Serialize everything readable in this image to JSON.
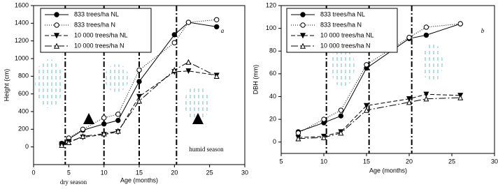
{
  "chart_data": [
    {
      "type": "line",
      "ylabel": "Height (cm)",
      "xlabel": "Age (months)",
      "annotation": "a",
      "xlim": [
        0,
        30
      ],
      "xticks": [
        0,
        5,
        10,
        15,
        20,
        25,
        30
      ],
      "ylim": [
        -200,
        1600
      ],
      "yticks": [
        0,
        200,
        400,
        600,
        800,
        1000,
        1200,
        1400,
        1600
      ],
      "season_lines": [
        4.5,
        10,
        15,
        20.3
      ],
      "season_labels": [
        "dry season",
        "humid season"
      ],
      "series": [
        {
          "name": "833 trees/ha NL",
          "color": "#000000",
          "marker": "circle-filled",
          "dash": "solid",
          "x": [
            4,
            5,
            7,
            10,
            12,
            15,
            20,
            22,
            26
          ],
          "values": [
            30,
            90,
            190,
            260,
            300,
            740,
            1270,
            1410,
            1360
          ]
        },
        {
          "name": "833 trees/ha N",
          "color": "#000000",
          "marker": "circle-open",
          "dash": "dotted",
          "x": [
            4,
            5,
            7,
            10,
            12,
            15,
            20,
            22,
            26
          ],
          "values": [
            40,
            100,
            200,
            330,
            370,
            870,
            1180,
            1410,
            1440
          ]
        },
        {
          "name": "10 000 trees/ha NL",
          "color": "#000000",
          "marker": "triangle-down-filled",
          "dash": "dashed",
          "x": [
            4,
            5,
            7,
            10,
            12,
            15,
            20,
            22,
            26
          ],
          "values": [
            30,
            60,
            110,
            140,
            170,
            570,
            850,
            860,
            810
          ]
        },
        {
          "name": "10 000 trees/ha N",
          "color": "#000000",
          "marker": "triangle-up-open",
          "dash": "longdash",
          "x": [
            4,
            5,
            7,
            10,
            12,
            15,
            20,
            22,
            26
          ],
          "values": [
            20,
            50,
            120,
            150,
            180,
            520,
            870,
            960,
            800
          ]
        }
      ]
    },
    {
      "type": "line",
      "ylabel": "DBH (mm)",
      "xlabel": "Age (months)",
      "annotation": "b",
      "xlim": [
        5,
        30
      ],
      "xticks": [
        5,
        10,
        15,
        20,
        25,
        30
      ],
      "ylim": [
        -10,
        120
      ],
      "yticks": [
        0,
        20,
        40,
        60,
        80,
        100,
        120
      ],
      "season_lines": [
        10.3,
        15.3,
        20.3
      ],
      "series": [
        {
          "name": "833 trees/ha NL",
          "color": "#000000",
          "marker": "circle-filled",
          "dash": "solid",
          "x": [
            7,
            10,
            12,
            15,
            20,
            22,
            26
          ],
          "values": [
            9,
            17,
            23,
            65,
            91,
            94,
            104
          ]
        },
        {
          "name": "833 trees/ha N",
          "color": "#000000",
          "marker": "circle-open",
          "dash": "dotted",
          "x": [
            7,
            10,
            12,
            15,
            20,
            22,
            26
          ],
          "values": [
            8,
            20,
            28,
            68,
            92,
            101,
            104
          ]
        },
        {
          "name": "10 000 trees/ha NL",
          "color": "#000000",
          "marker": "triangle-down-filled",
          "dash": "dashed",
          "x": [
            7,
            10,
            12,
            15,
            20,
            22,
            26
          ],
          "values": [
            4,
            5,
            9,
            32,
            38,
            42,
            41
          ]
        },
        {
          "name": "10 000 trees/ha N",
          "color": "#000000",
          "marker": "triangle-up-open",
          "dash": "longdash",
          "x": [
            7,
            10,
            12,
            15,
            20,
            22,
            26
          ],
          "values": [
            3,
            4,
            8,
            28,
            35,
            38,
            39
          ]
        }
      ]
    }
  ]
}
